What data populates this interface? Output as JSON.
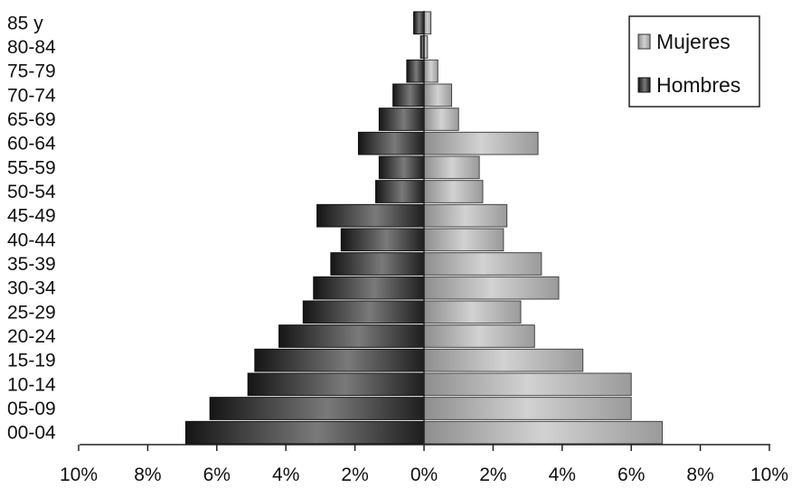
{
  "chart_data": {
    "type": "bar",
    "orientation": "horizontal",
    "categories": [
      "00-04",
      "05-09",
      "10-14",
      "15-19",
      "20-24",
      "25-29",
      "30-34",
      "35-39",
      "40-44",
      "45-49",
      "50-54",
      "55-59",
      "60-64",
      "65-69",
      "70-74",
      "75-79",
      "80-84",
      "85 y"
    ],
    "series": [
      {
        "name": "Mujeres",
        "values": [
          6.9,
          6.0,
          6.0,
          4.6,
          3.2,
          2.8,
          3.9,
          3.4,
          2.3,
          2.4,
          1.7,
          1.6,
          3.3,
          1.0,
          0.8,
          0.4,
          0.1,
          0.2
        ]
      },
      {
        "name": "Hombres",
        "values": [
          6.9,
          6.2,
          5.1,
          4.9,
          4.2,
          3.5,
          3.2,
          2.7,
          2.4,
          3.1,
          1.4,
          1.3,
          1.9,
          1.3,
          0.9,
          0.5,
          0.1,
          0.3
        ]
      }
    ],
    "xlim": [
      -10,
      10
    ],
    "x_ticks": [
      "10%",
      "8%",
      "6%",
      "4%",
      "2%",
      "0%",
      "2%",
      "4%",
      "6%",
      "8%",
      "10%"
    ],
    "legend": "top-right",
    "grid": false,
    "colors": {
      "Mujeres": "#b0b0b0",
      "Hombres": "#2a2a2a"
    }
  }
}
